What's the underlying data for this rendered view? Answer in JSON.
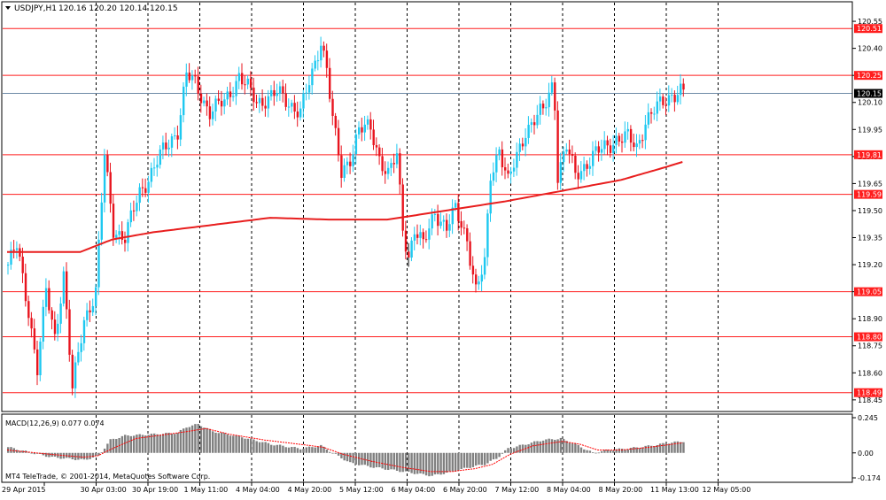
{
  "header": {
    "symbol": "USDJPY,H1",
    "ohlc": "120.16 120.20 120.14 120.15"
  },
  "indicator": {
    "title": "MACD(12,26,9) 0.077 0.074"
  },
  "footer": {
    "copyright": "MT4 TeleTrade, © 2001-2014, MetaQuotes Software Corp."
  },
  "colors": {
    "bull": "#1ec8f0",
    "bear": "#e8141e",
    "ma": "#e81e1e",
    "level_line": "#ff1e1e",
    "price_line": "#6e8aa6",
    "macd_hist": "#808080",
    "macd_signal": "#ff0000"
  },
  "chart_data": [
    {
      "type": "candlestick",
      "title": "USDJPY,H1",
      "timeframe": "H1",
      "ylim": [
        118.41,
        120.57
      ],
      "y_ticks": [
        "120.55",
        "120.40",
        "120.25",
        "120.10",
        "119.95",
        "119.80",
        "119.65",
        "119.50",
        "119.35",
        "119.20",
        "119.05",
        "118.90",
        "118.75",
        "118.60",
        "118.45"
      ],
      "x_ticks": [
        "29 Apr 2015",
        "30 Apr 03:00",
        "30 Apr 19:00",
        "1 May 11:00",
        "4 May 04:00",
        "4 May 20:00",
        "5 May 12:00",
        "6 May 04:00",
        "6 May 20:00",
        "7 May 12:00",
        "8 May 04:00",
        "8 May 20:00",
        "11 May 13:00",
        "12 May 05:00"
      ],
      "grid": "vertical dashed",
      "current_price": "120.15",
      "levels": [
        "120.51",
        "120.25",
        "119.81",
        "119.59",
        "119.05",
        "118.80",
        "118.49"
      ],
      "moving_average": [
        [
          0,
          119.27
        ],
        [
          12,
          119.27
        ],
        [
          25,
          119.27
        ],
        [
          36,
          119.34
        ],
        [
          50,
          119.38
        ],
        [
          70,
          119.42
        ],
        [
          90,
          119.46
        ],
        [
          110,
          119.45
        ],
        [
          130,
          119.45
        ],
        [
          150,
          119.5
        ],
        [
          170,
          119.55
        ],
        [
          190,
          119.61
        ],
        [
          210,
          119.67
        ],
        [
          225,
          119.74
        ],
        [
          231,
          119.77
        ]
      ],
      "anchors": [
        [
          0,
          119.2
        ],
        [
          3,
          119.3
        ],
        [
          7,
          118.95
        ],
        [
          10,
          118.62
        ],
        [
          13,
          119.05
        ],
        [
          16,
          118.8
        ],
        [
          19,
          119.15
        ],
        [
          22,
          118.5
        ],
        [
          26,
          118.9
        ],
        [
          30,
          119.05
        ],
        [
          33,
          119.8
        ],
        [
          36,
          119.4
        ],
        [
          40,
          119.35
        ],
        [
          45,
          119.6
        ],
        [
          52,
          119.8
        ],
        [
          58,
          119.95
        ],
        [
          61,
          120.25
        ],
        [
          64,
          120.2
        ],
        [
          69,
          120.05
        ],
        [
          74,
          120.1
        ],
        [
          79,
          120.25
        ],
        [
          85,
          120.1
        ],
        [
          92,
          120.15
        ],
        [
          100,
          120.05
        ],
        [
          104,
          120.25
        ],
        [
          107,
          120.45
        ],
        [
          109,
          120.3
        ],
        [
          111,
          120.0
        ],
        [
          114,
          119.7
        ],
        [
          117,
          119.8
        ],
        [
          120,
          119.95
        ],
        [
          124,
          119.95
        ],
        [
          127,
          119.8
        ],
        [
          130,
          119.7
        ],
        [
          133,
          119.8
        ],
        [
          135,
          119.4
        ],
        [
          137,
          119.25
        ],
        [
          139,
          119.4
        ],
        [
          142,
          119.3
        ],
        [
          146,
          119.5
        ],
        [
          150,
          119.4
        ],
        [
          153,
          119.5
        ],
        [
          157,
          119.35
        ],
        [
          160,
          119.05
        ],
        [
          163,
          119.2
        ],
        [
          165,
          119.7
        ],
        [
          168,
          119.85
        ],
        [
          171,
          119.65
        ],
        [
          174,
          119.8
        ],
        [
          177,
          119.95
        ],
        [
          180,
          120.0
        ],
        [
          183,
          120.05
        ],
        [
          186,
          120.2
        ],
        [
          187,
          120.1
        ],
        [
          188,
          119.7
        ],
        [
          191,
          119.85
        ],
        [
          194,
          119.7
        ],
        [
          197,
          119.75
        ],
        [
          200,
          119.8
        ],
        [
          204,
          119.85
        ],
        [
          208,
          119.9
        ],
        [
          212,
          119.9
        ],
        [
          215,
          119.85
        ],
        [
          218,
          120.0
        ],
        [
          221,
          120.05
        ],
        [
          224,
          120.1
        ],
        [
          227,
          120.15
        ],
        [
          230,
          120.16
        ],
        [
          231,
          120.15
        ]
      ]
    },
    {
      "type": "histogram",
      "title": "MACD(12,26,9) 0.077 0.074",
      "macd_value": "0.077",
      "signal_value": "0.074",
      "ylim": [
        -0.174,
        0.245
      ],
      "y_ticks": [
        "0.245",
        "0.00",
        "-0.174"
      ],
      "hist_anchors": [
        [
          0,
          0.04
        ],
        [
          8,
          0.0
        ],
        [
          15,
          -0.03
        ],
        [
          26,
          -0.05
        ],
        [
          31,
          -0.02
        ],
        [
          35,
          0.09
        ],
        [
          40,
          0.12
        ],
        [
          50,
          0.13
        ],
        [
          58,
          0.14
        ],
        [
          61,
          0.18
        ],
        [
          65,
          0.2
        ],
        [
          70,
          0.15
        ],
        [
          80,
          0.11
        ],
        [
          90,
          0.06
        ],
        [
          100,
          0.03
        ],
        [
          107,
          0.05
        ],
        [
          111,
          0.0
        ],
        [
          117,
          -0.07
        ],
        [
          125,
          -0.1
        ],
        [
          135,
          -0.13
        ],
        [
          145,
          -0.16
        ],
        [
          152,
          -0.13
        ],
        [
          158,
          -0.1
        ],
        [
          163,
          -0.08
        ],
        [
          167,
          -0.04
        ],
        [
          171,
          0.03
        ],
        [
          177,
          0.06
        ],
        [
          183,
          0.09
        ],
        [
          189,
          0.1
        ],
        [
          194,
          0.06
        ],
        [
          200,
          0.0
        ],
        [
          205,
          0.02
        ],
        [
          212,
          0.03
        ],
        [
          220,
          0.05
        ],
        [
          226,
          0.07
        ],
        [
          231,
          0.08
        ]
      ],
      "signal_anchors": [
        [
          0,
          0.02
        ],
        [
          15,
          -0.01
        ],
        [
          26,
          -0.03
        ],
        [
          31,
          -0.02
        ],
        [
          36,
          0.03
        ],
        [
          44,
          0.1
        ],
        [
          55,
          0.13
        ],
        [
          62,
          0.15
        ],
        [
          68,
          0.17
        ],
        [
          76,
          0.13
        ],
        [
          88,
          0.09
        ],
        [
          100,
          0.06
        ],
        [
          108,
          0.04
        ],
        [
          115,
          -0.01
        ],
        [
          125,
          -0.06
        ],
        [
          135,
          -0.1
        ],
        [
          145,
          -0.13
        ],
        [
          152,
          -0.13
        ],
        [
          160,
          -0.11
        ],
        [
          166,
          -0.08
        ],
        [
          172,
          -0.01
        ],
        [
          180,
          0.05
        ],
        [
          190,
          0.08
        ],
        [
          196,
          0.06
        ],
        [
          202,
          0.02
        ],
        [
          210,
          0.02
        ],
        [
          220,
          0.04
        ],
        [
          231,
          0.07
        ]
      ]
    }
  ]
}
